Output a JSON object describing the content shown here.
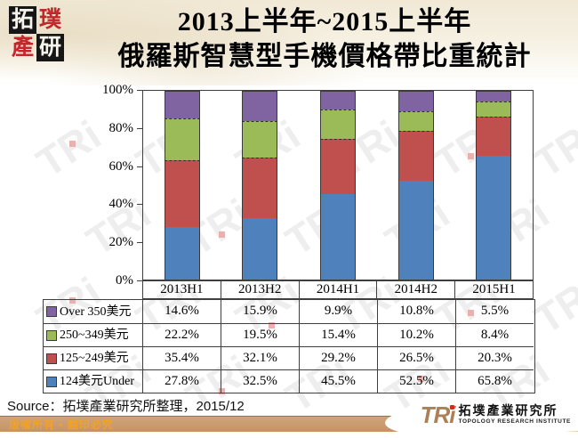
{
  "title": {
    "line1": "2013上半年~2015上半年",
    "line2": "俄羅斯智慧型手機價格帶比重統計"
  },
  "logo_topleft": {
    "chars": [
      "拓",
      "璞",
      "產",
      "研"
    ]
  },
  "chart_data": {
    "type": "bar",
    "subtype": "stacked-percent",
    "categories": [
      "2013H1",
      "2013H2",
      "2014H1",
      "2014H2",
      "2015H1"
    ],
    "series": [
      {
        "name": "124美元Under",
        "color": "#4F81BD",
        "values": [
          27.8,
          32.5,
          45.5,
          52.5,
          65.8
        ]
      },
      {
        "name": "125~249美元",
        "color": "#C0504D",
        "values": [
          35.4,
          32.1,
          29.2,
          26.5,
          20.3
        ]
      },
      {
        "name": "250~349美元",
        "color": "#9BBB59",
        "values": [
          22.2,
          19.5,
          15.4,
          10.2,
          8.4
        ]
      },
      {
        "name": "Over 350美元",
        "color": "#8064A2",
        "values": [
          14.6,
          15.9,
          9.9,
          10.8,
          5.5
        ]
      }
    ],
    "ylabel": "",
    "xlabel": "",
    "ylim": [
      0,
      100
    ],
    "yticks": [
      "100%",
      "80%",
      "60%",
      "40%",
      "20%",
      "0%"
    ],
    "grid": false,
    "legend_position": "table-below",
    "value_format": "percent"
  },
  "table": {
    "rows": [
      {
        "label": "Over 350美元",
        "color": "#8064A2",
        "values": [
          "14.6%",
          "15.9%",
          "9.9%",
          "10.8%",
          "5.5%"
        ]
      },
      {
        "label": "250~349美元",
        "color": "#9BBB59",
        "values": [
          "22.2%",
          "19.5%",
          "15.4%",
          "10.2%",
          "8.4%"
        ]
      },
      {
        "label": "125~249美元",
        "color": "#C0504D",
        "values": [
          "35.4%",
          "32.1%",
          "29.2%",
          "26.5%",
          "20.3%"
        ]
      },
      {
        "label": "124美元Under",
        "color": "#4F81BD",
        "values": [
          "27.8%",
          "32.5%",
          "45.5%",
          "52.5%",
          "65.8%"
        ]
      }
    ]
  },
  "source": {
    "text": "Source：拓墣產業研究所整理，2015/12"
  },
  "footer": {
    "copyright": "版權所有 ▪ 翻印必究"
  },
  "brand": {
    "tri": "TRi",
    "chinese": "拓墣產業研究所",
    "english": "TOPOLOGY RESEARCH INSTITUTE"
  },
  "watermark": {
    "text": "TRi"
  }
}
